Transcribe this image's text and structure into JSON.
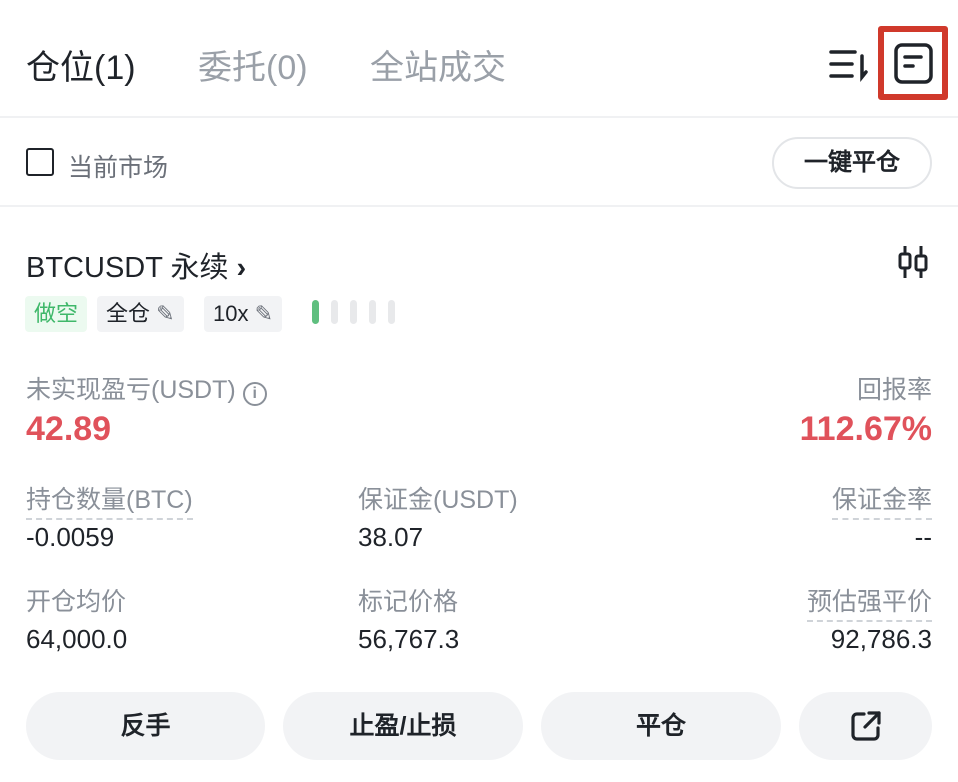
{
  "tabs": [
    {
      "label": "仓位(1)",
      "active": true
    },
    {
      "label": "委托(0)"
    },
    {
      "label": "全站成交"
    }
  ],
  "icons": {
    "sort": "sort-icon",
    "record": "order-record-icon",
    "chart": "candlestick-icon",
    "share": "share-icon"
  },
  "highlight_color": "#d0392b",
  "filter": {
    "current_market_label": "当前市场",
    "checked": false,
    "close_all_label": "一键平仓"
  },
  "position": {
    "symbol": "BTCUSDT 永续",
    "side": "做空",
    "side_color": "#3fb86a",
    "margin_mode": "全仓",
    "leverage": "10x",
    "risk_level": "1/5",
    "unrealized_pnl_label": "未实现盈亏(USDT)",
    "unrealized_pnl": "42.89",
    "roe_label": "回报率",
    "roe": "112.67%",
    "profit_color": "#e0525b",
    "size_label": "持仓数量(BTC)",
    "size": "-0.0059",
    "margin_label": "保证金(USDT)",
    "margin": "38.07",
    "margin_ratio_label": "保证金率",
    "margin_ratio": "--",
    "entry_label": "开仓均价",
    "entry": "64,000.0",
    "mark_label": "标记价格",
    "mark": "56,767.3",
    "liq_label": "预估强平价",
    "liq": "92,786.3"
  },
  "actions": {
    "reverse": "反手",
    "tpsl": "止盈/止损",
    "close": "平仓"
  }
}
